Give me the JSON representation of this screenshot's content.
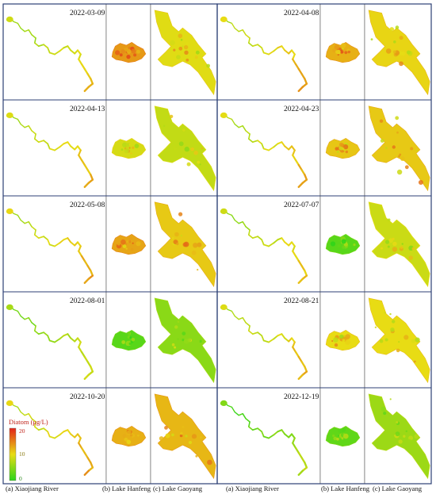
{
  "colors": {
    "frame": "#2c3f74",
    "cell_border": "#555555",
    "low": "#2bd51a",
    "mid": "#e8dc14",
    "high": "#e2231a"
  },
  "rows": [
    {
      "left": {
        "date": "2022-03-09",
        "river": 0.38,
        "hanfeng": 0.68,
        "gaoyang": 0.48
      },
      "right": {
        "date": "2022-04-08",
        "river": 0.45,
        "hanfeng": 0.62,
        "gaoyang": 0.52
      }
    },
    {
      "left": {
        "date": "2022-04-13",
        "river": 0.42,
        "hanfeng": 0.45,
        "gaoyang": 0.4
      },
      "right": {
        "date": "2022-04-23",
        "river": 0.44,
        "hanfeng": 0.56,
        "gaoyang": 0.55
      }
    },
    {
      "left": {
        "date": "2022-05-08",
        "river": 0.46,
        "hanfeng": 0.65,
        "gaoyang": 0.55
      },
      "right": {
        "date": "2022-07-07",
        "river": 0.38,
        "hanfeng": 0.12,
        "gaoyang": 0.42
      }
    },
    {
      "left": {
        "date": "2022-08-01",
        "river": 0.28,
        "hanfeng": 0.12,
        "gaoyang": 0.25
      },
      "right": {
        "date": "2022-08-21",
        "river": 0.42,
        "hanfeng": 0.5,
        "gaoyang": 0.5
      }
    },
    {
      "left": {
        "date": "2022-10-20",
        "river": 0.46,
        "hanfeng": 0.62,
        "gaoyang": 0.6
      },
      "right": {
        "date": "2022-12-19",
        "river": 0.18,
        "hanfeng": 0.14,
        "gaoyang": 0.3
      }
    }
  ],
  "legend": {
    "title": "Diatom (μg/L)",
    "ticks": [
      "20",
      "10",
      "0"
    ]
  },
  "captions": [
    "(a) Xiaojiang River",
    "(b) Lake Hanfeng",
    "(c) Lake Gaoyang",
    "(a) Xiaojiang River",
    "(b) Lake Hanfeng",
    "(c) Lake Gaoyang"
  ]
}
